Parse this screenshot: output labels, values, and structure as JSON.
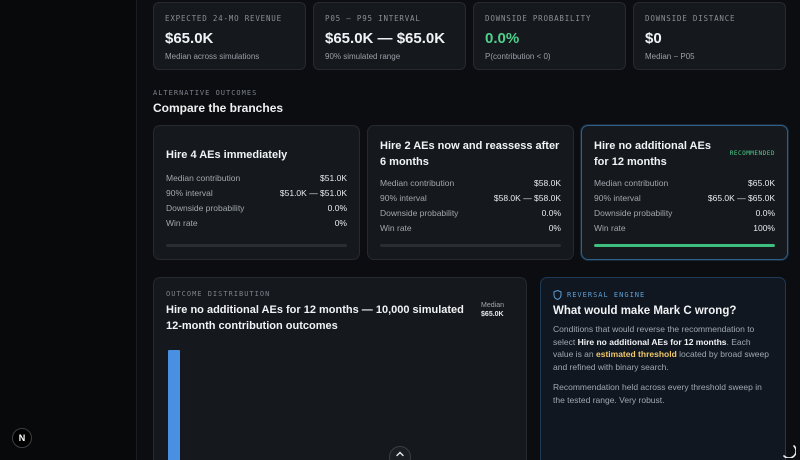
{
  "stats": [
    {
      "label": "EXPECTED 24-MO REVENUE",
      "value": "$65.0K",
      "sub": "Median across simulations"
    },
    {
      "label": "P05 – P95 INTERVAL",
      "value": "$65.0K — $65.0K",
      "sub": "90% simulated range"
    },
    {
      "label": "DOWNSIDE PROBABILITY",
      "value": "0.0%",
      "sub": "P(contribution < 0)"
    },
    {
      "label": "DOWNSIDE DISTANCE",
      "value": "$0",
      "sub": "Median − P05"
    }
  ],
  "alternatives": {
    "eyebrow": "ALTERNATIVE OUTCOMES",
    "title": "Compare the branches",
    "metric_labels": {
      "median": "Median contribution",
      "interval": "90% interval",
      "downside": "Downside probability",
      "winrate": "Win rate"
    },
    "branches": [
      {
        "title": "Hire 4 AEs immediately",
        "badge": "",
        "median": "$51.0K",
        "interval": "$51.0K — $51.0K",
        "downside": "0.0%",
        "winrate": "0%",
        "win_fraction": 0
      },
      {
        "title": "Hire 2 AEs now and reassess after 6 months",
        "badge": "",
        "median": "$58.0K",
        "interval": "$58.0K — $58.0K",
        "downside": "0.0%",
        "winrate": "0%",
        "win_fraction": 0
      },
      {
        "title": "Hire no additional AEs for 12 months",
        "badge": "RECOMMENDED",
        "median": "$65.0K",
        "interval": "$65.0K — $65.0K",
        "downside": "0.0%",
        "winrate": "100%",
        "win_fraction": 1
      }
    ]
  },
  "distribution": {
    "eyebrow": "OUTCOME DISTRIBUTION",
    "title": "Hire no additional AEs for 12 months — 10,000 simulated 12-month contribution outcomes",
    "median_label": "Median",
    "median_value": "$65.0K"
  },
  "reversal": {
    "eyebrow": "REVERSAL ENGINE",
    "title": "What would make Mark C wrong?",
    "p1_a": "Conditions that would reverse the recommendation to select ",
    "p1_option": "Hire no additional AEs for 12 months",
    "p1_b": ". Each value is an ",
    "p1_highlight": "estimated threshold",
    "p1_c": " located by broad sweep and refined with binary search.",
    "p2": "Recommendation held across every threshold sweep in the tested range. Very robust."
  },
  "icons": {
    "dev_badge": "N",
    "scroll": "chevron-up-icon",
    "reversal": "shield-icon"
  },
  "colors": {
    "accent_green": "#4fd18b",
    "accent_blue": "#4a90e2",
    "highlight": "#f1c96a"
  }
}
